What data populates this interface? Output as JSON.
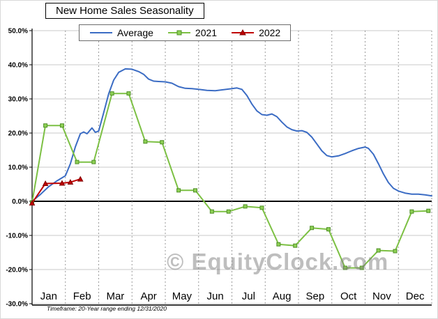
{
  "title": "New Home Sales Seasonality",
  "watermark": "© EquityClock.com",
  "footnote": "Timeframe: 20-Year range ending 12/31/2020",
  "colors": {
    "average": "#3b6cc4",
    "y2021": "#7cc043",
    "y2021_marker": "#8ed054",
    "y2021_marker_stroke": "#4f8f28",
    "y2022": "#c00000",
    "y2022_marker_stroke": "#7f0000",
    "grid": "#c9c9c9",
    "grid_dash": "#9a9a9a",
    "axis": "#000000",
    "watermark": "#7f7f7f"
  },
  "chart_data": {
    "type": "line",
    "title": "New Home Sales Seasonality",
    "xlabel": "",
    "ylabel": "",
    "x_unit": "month index 0-12 (Jan=0 .. Dec end=12)",
    "xlabels": [
      "Jan",
      "Feb",
      "Mar",
      "Apr",
      "May",
      "Jun",
      "Jul",
      "Aug",
      "Sep",
      "Oct",
      "Nov",
      "Dec"
    ],
    "y_ticks": [
      "50.0%",
      "40.0%",
      "30.0%",
      "20.0%",
      "10.0%",
      "0.0%",
      "-10.0%",
      "-20.0%",
      "-30.0%"
    ],
    "ylim": [
      -30,
      50
    ],
    "grid": true,
    "legend_position": "top",
    "series": [
      {
        "name": "Average",
        "color": "#3b6cc4",
        "marker": "none",
        "points": [
          [
            0,
            0
          ],
          [
            0.25,
            2
          ],
          [
            0.5,
            4.3
          ],
          [
            0.75,
            6
          ],
          [
            1.0,
            7.5
          ],
          [
            1.15,
            11
          ],
          [
            1.3,
            16
          ],
          [
            1.45,
            19.8
          ],
          [
            1.55,
            20.3
          ],
          [
            1.65,
            19.8
          ],
          [
            1.8,
            21.5
          ],
          [
            1.9,
            20.2
          ],
          [
            2.0,
            20.6
          ],
          [
            2.15,
            26
          ],
          [
            2.3,
            31.5
          ],
          [
            2.45,
            35.5
          ],
          [
            2.6,
            37.8
          ],
          [
            2.8,
            38.8
          ],
          [
            3.0,
            38.7
          ],
          [
            3.2,
            38
          ],
          [
            3.35,
            37.2
          ],
          [
            3.5,
            35.8
          ],
          [
            3.65,
            35.2
          ],
          [
            3.8,
            35.1
          ],
          [
            4.0,
            35.0
          ],
          [
            4.2,
            34.6
          ],
          [
            4.4,
            33.6
          ],
          [
            4.6,
            33.1
          ],
          [
            4.8,
            33.0
          ],
          [
            5.0,
            32.8
          ],
          [
            5.25,
            32.5
          ],
          [
            5.5,
            32.4
          ],
          [
            5.75,
            32.7
          ],
          [
            6.0,
            33.0
          ],
          [
            6.15,
            33.2
          ],
          [
            6.3,
            32.8
          ],
          [
            6.45,
            31
          ],
          [
            6.6,
            28.5
          ],
          [
            6.75,
            26.5
          ],
          [
            6.9,
            25.4
          ],
          [
            7.05,
            25.2
          ],
          [
            7.2,
            25.6
          ],
          [
            7.35,
            24.8
          ],
          [
            7.5,
            23.2
          ],
          [
            7.65,
            21.8
          ],
          [
            7.8,
            21.0
          ],
          [
            7.95,
            20.6
          ],
          [
            8.1,
            20.7
          ],
          [
            8.25,
            20.2
          ],
          [
            8.4,
            18.8
          ],
          [
            8.55,
            16.8
          ],
          [
            8.7,
            14.8
          ],
          [
            8.85,
            13.4
          ],
          [
            9.0,
            13.0
          ],
          [
            9.2,
            13.3
          ],
          [
            9.4,
            14.0
          ],
          [
            9.6,
            14.8
          ],
          [
            9.8,
            15.5
          ],
          [
            10.0,
            15.9
          ],
          [
            10.1,
            15.5
          ],
          [
            10.25,
            13.8
          ],
          [
            10.4,
            11
          ],
          [
            10.55,
            8
          ],
          [
            10.7,
            5.5
          ],
          [
            10.85,
            3.8
          ],
          [
            11.0,
            3.0
          ],
          [
            11.2,
            2.4
          ],
          [
            11.4,
            2.1
          ],
          [
            11.6,
            2.1
          ],
          [
            11.8,
            1.9
          ],
          [
            12.0,
            1.6
          ]
        ]
      },
      {
        "name": "2021",
        "color": "#7cc043",
        "marker": "square",
        "marker_fill": "#8ed054",
        "marker_stroke": "#4f8f28",
        "points": [
          [
            0,
            -0.3
          ],
          [
            0.4,
            22.2
          ],
          [
            0.9,
            22.2
          ],
          [
            1.35,
            11.5
          ],
          [
            1.85,
            11.5
          ],
          [
            2.4,
            31.6
          ],
          [
            2.9,
            31.6
          ],
          [
            3.4,
            17.5
          ],
          [
            3.9,
            17.3
          ],
          [
            4.4,
            3.2
          ],
          [
            4.9,
            3.2
          ],
          [
            5.4,
            -3.0
          ],
          [
            5.9,
            -3.0
          ],
          [
            6.4,
            -1.5
          ],
          [
            6.9,
            -1.9
          ],
          [
            7.4,
            -12.6
          ],
          [
            7.9,
            -13.0
          ],
          [
            8.4,
            -7.8
          ],
          [
            8.9,
            -8.2
          ],
          [
            9.4,
            -19.5
          ],
          [
            9.9,
            -19.5
          ],
          [
            10.4,
            -14.4
          ],
          [
            10.9,
            -14.6
          ],
          [
            11.4,
            -3.0
          ],
          [
            11.9,
            -2.8
          ]
        ]
      },
      {
        "name": "2022",
        "color": "#c00000",
        "marker": "triangle",
        "marker_fill": "#c00000",
        "marker_stroke": "#7f0000",
        "points": [
          [
            0,
            -0.5
          ],
          [
            0.4,
            5.2
          ],
          [
            0.9,
            5.3
          ],
          [
            1.15,
            5.6
          ],
          [
            1.45,
            6.5
          ]
        ]
      }
    ]
  }
}
